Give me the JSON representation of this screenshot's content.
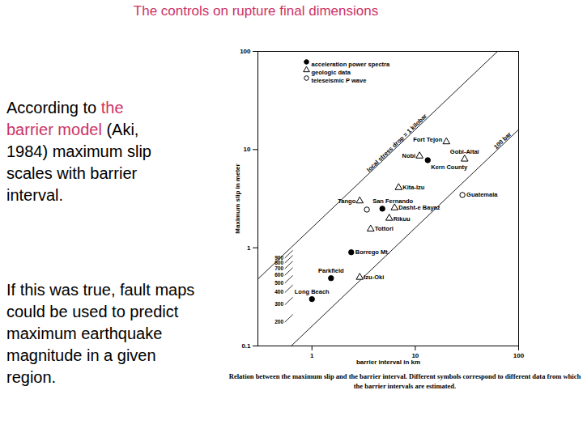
{
  "slide": {
    "title": "The controls on rupture final dimensions",
    "title_color": "#cc3366",
    "highlight_color": "#cc3366",
    "paragraphs": [
      [
        {
          "text": "According to "
        },
        {
          "text": "the barrier model",
          "highlight": true
        },
        {
          "text": " (Aki, 1984) maximum slip scales with barrier interval."
        }
      ],
      [
        {
          "text": "If this was true, fault maps could be used to predict maximum earthquake magnitude in a given region."
        }
      ]
    ]
  },
  "chart_data": {
    "type": "scatter",
    "log": true,
    "grid": false,
    "legend": "top-left",
    "x_label": "barrier interval in km",
    "y_label": "Maximum slip in meter",
    "caption": "Relation between the maximum slip and the barrier interval. Different symbols correspond to different data from which the barrier intervals are estimated.",
    "xlim": [
      0.3,
      100
    ],
    "ylim": [
      0.1,
      100
    ],
    "xticks": [
      1,
      10,
      100
    ],
    "yticks": [
      0.1,
      1,
      10,
      100
    ],
    "series": [
      {
        "name": "acceleration power spectra",
        "marker": "circle-filled",
        "color": "#000000",
        "x": [
          13.2,
          4.8,
          2.4,
          1.53,
          1.0
        ],
        "y": [
          7.8,
          2.5,
          0.9,
          0.49,
          0.3
        ],
        "labels": [
          "Kern County",
          "San Fernando",
          "Borrego Mt.",
          "Parkfield",
          "Long Beach"
        ]
      },
      {
        "name": "geologic data",
        "marker": "triangle-open",
        "color": "#000000",
        "x": [
          20,
          11,
          30,
          6.9,
          2.9,
          6.3,
          5.6,
          3.7,
          2.9
        ],
        "y": [
          12,
          8.6,
          8.0,
          4.1,
          3.0,
          2.55,
          2.0,
          1.55,
          0.5
        ],
        "labels": [
          "Fort Tejon",
          "Nobi",
          "Gobi-Altai",
          "Kita-Izu",
          "Tango",
          "Dasht-e Bayaz",
          "Rikuu",
          "Tottori",
          "Izu-Oki"
        ]
      },
      {
        "name": "teleseismic P wave",
        "marker": "circle-open",
        "color": "#000000",
        "x": [
          28.6,
          3.4
        ],
        "y": [
          3.45,
          2.45
        ],
        "labels": [
          "Guatemala",
          null
        ]
      }
    ],
    "lines": [
      {
        "label": "local stress drop = 1 kilobar",
        "x": [
          0.3,
          62.5
        ],
        "y": [
          0.48,
          100
        ]
      },
      {
        "label": "100 bar",
        "x": [
          0.63,
          100
        ],
        "y": [
          0.1,
          16
        ]
      }
    ],
    "stress_marks": [
      {
        "value": 200,
        "x": [
          0.55,
          0.65
        ],
        "y": [
          0.176,
          0.208
        ]
      },
      {
        "value": 300,
        "x": [
          0.55,
          0.65
        ],
        "y": [
          0.264,
          0.312
        ]
      },
      {
        "value": 400,
        "x": [
          0.55,
          0.65
        ],
        "y": [
          0.352,
          0.416
        ]
      },
      {
        "value": 500,
        "x": [
          0.55,
          0.65
        ],
        "y": [
          0.44,
          0.52
        ]
      },
      {
        "value": 600,
        "x": [
          0.55,
          0.65
        ],
        "y": [
          0.528,
          0.624
        ]
      },
      {
        "value": 700,
        "x": [
          0.55,
          0.65
        ],
        "y": [
          0.616,
          0.728
        ]
      },
      {
        "value": 800,
        "x": [
          0.55,
          0.65
        ],
        "y": [
          0.704,
          0.832
        ]
      },
      {
        "value": 900,
        "x": [
          0.55,
          0.65
        ],
        "y": [
          0.792,
          0.936
        ]
      }
    ]
  }
}
